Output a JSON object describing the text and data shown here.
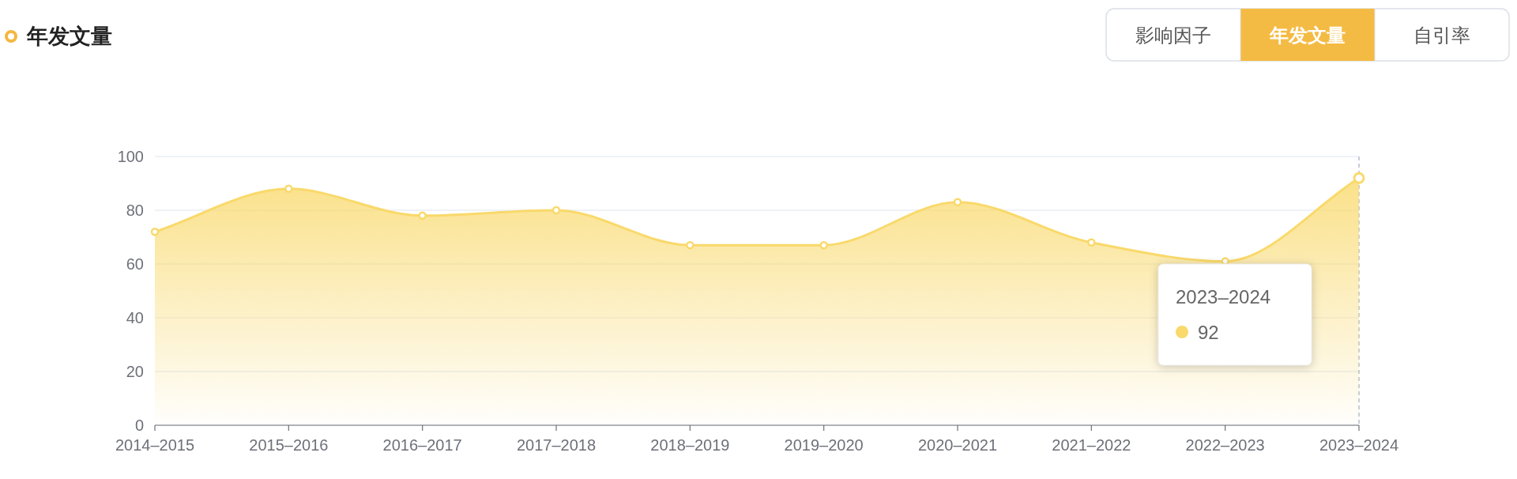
{
  "chart_data": {
    "type": "area",
    "title": "年发文量",
    "categories": [
      "2014–2015",
      "2015–2016",
      "2016–2017",
      "2017–2018",
      "2018–2019",
      "2019–2020",
      "2020–2021",
      "2021–2022",
      "2022–2023",
      "2023–2024"
    ],
    "series": [
      {
        "color": "#f9d96b",
        "values": [
          72,
          88,
          78,
          80,
          67,
          67,
          83,
          68,
          61,
          92
        ]
      }
    ],
    "ylim": [
      0,
      100
    ],
    "yticks": [
      0,
      20,
      40,
      60,
      80,
      100
    ],
    "grid": "y",
    "marker": "circle",
    "ref_lines": [
      {
        "axis": "x",
        "value": "2023–2024",
        "color": "#a9b3c2",
        "line_style": "dashed"
      }
    ],
    "annotations": [
      "影响因子",
      "年发文量",
      "自引率",
      "2023–2024\n92"
    ]
  }
}
